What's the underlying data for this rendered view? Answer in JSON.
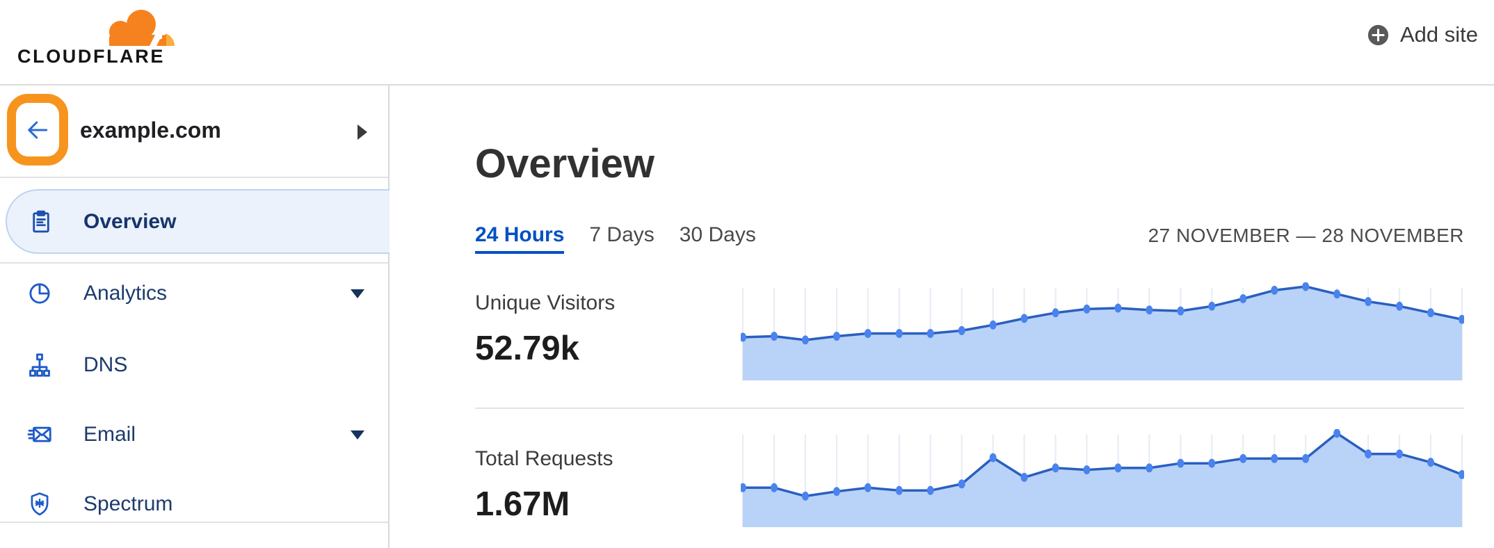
{
  "header": {
    "logo_text": "CLOUDFLARE",
    "add_site_label": "Add site"
  },
  "sidebar": {
    "site": "example.com",
    "back_highlight_color": "#f7941d",
    "items": [
      {
        "label": "Overview",
        "icon": "clipboard-icon",
        "active": true,
        "has_caret": false
      },
      {
        "label": "Analytics",
        "icon": "pie-chart-icon",
        "active": false,
        "has_caret": true
      },
      {
        "label": "DNS",
        "icon": "dns-tree-icon",
        "active": false,
        "has_caret": false
      },
      {
        "label": "Email",
        "icon": "email-icon",
        "active": false,
        "has_caret": true
      },
      {
        "label": "Spectrum",
        "icon": "spectrum-shield-icon",
        "active": false,
        "has_caret": false
      }
    ]
  },
  "main": {
    "title": "Overview",
    "tabs": [
      {
        "label": "24 Hours",
        "active": true
      },
      {
        "label": "7 Days",
        "active": false
      },
      {
        "label": "30 Days",
        "active": false
      }
    ],
    "date_range": "27 NOVEMBER — 28 NOVEMBER",
    "metrics": [
      {
        "label": "Unique Visitors",
        "value": "52.79k"
      },
      {
        "label": "Total Requests",
        "value": "1.67M"
      }
    ]
  },
  "colors": {
    "accent_blue": "#0051c3",
    "nav_text": "#1c3b6b",
    "nav_icon_blue": "#1f5bc8",
    "cloudflare_orange": "#f6821f",
    "cloudflare_light_orange": "#fbad41",
    "chart_area_fill": "#b9d2f7",
    "chart_line": "#2a5fc0",
    "chart_dot": "#4a83ee",
    "gridline": "#e7ebf3",
    "highlight_annotation": "#f7941d"
  },
  "chart_data": [
    {
      "type": "area",
      "title": "Unique Visitors",
      "total_label": "52.79k",
      "points": 24,
      "x_range": "27 November — 28 November (hourly, 24 Hours view, no x tick labels shown)",
      "y_unit": "relative height, % of series max (no y axis labels shown)",
      "grid": "vertical gridlines at each point",
      "legend": "none",
      "values": [
        46,
        47,
        43,
        47,
        50,
        50,
        50,
        53,
        59,
        66,
        72,
        76,
        77,
        75,
        74,
        79,
        87,
        96,
        100,
        92,
        84,
        79,
        72,
        65
      ]
    },
    {
      "type": "area",
      "title": "Total Requests",
      "total_label": "1.67M",
      "points": 24,
      "x_range": "27 November — 28 November (hourly, 24 Hours view, no x tick labels shown)",
      "y_unit": "relative height, % of series max (no y axis labels shown)",
      "grid": "vertical gridlines at each point",
      "legend": "none",
      "values": [
        42,
        42,
        33,
        38,
        42,
        39,
        39,
        46,
        74,
        53,
        63,
        61,
        63,
        63,
        68,
        68,
        73,
        73,
        73,
        100,
        78,
        78,
        69,
        56
      ]
    }
  ]
}
